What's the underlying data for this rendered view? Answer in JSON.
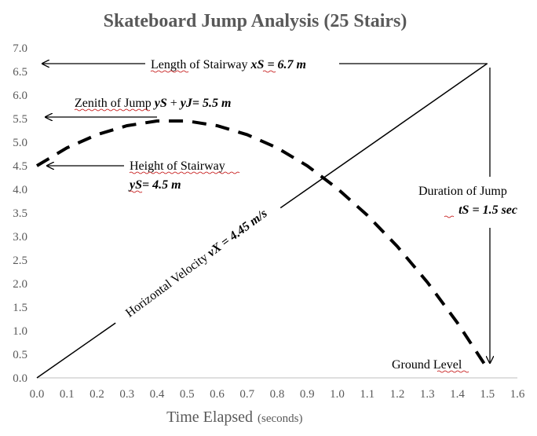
{
  "chart_data": {
    "type": "line",
    "title": "Skateboard Jump Analysis (25 Stairs)",
    "xlabel": "Time Elapsed",
    "xlabel_unit": "(seconds)",
    "ylabel": "",
    "xlim": [
      0,
      1.6
    ],
    "ylim": [
      0,
      7.0
    ],
    "x_ticks": [
      "0.0",
      "0.1",
      "0.2",
      "0.3",
      "0.4",
      "0.5",
      "0.6",
      "0.7",
      "0.8",
      "0.9",
      "1.0",
      "1.1",
      "1.2",
      "1.3",
      "1.4",
      "1.5",
      "1.6"
    ],
    "y_ticks": [
      "0.0",
      "0.5",
      "1.0",
      "1.5",
      "2.0",
      "2.5",
      "3.0",
      "3.5",
      "4.0",
      "4.5",
      "5.0",
      "5.5",
      "6.0",
      "6.5",
      "7.0"
    ],
    "grid": false,
    "series": [
      {
        "style": "solid",
        "color": "#000000",
        "x": [
          0,
          1.5
        ],
        "y": [
          0,
          6.67
        ]
      },
      {
        "style": "dashed",
        "color": "#000000",
        "x": [
          0.0,
          0.1,
          0.2,
          0.3,
          0.4,
          0.5,
          0.6,
          0.7,
          0.8,
          0.9,
          1.0,
          1.1,
          1.2,
          1.3,
          1.4,
          1.5
        ],
        "y": [
          4.5,
          4.88,
          5.16,
          5.35,
          5.45,
          5.45,
          5.35,
          5.16,
          4.88,
          4.5,
          4.02,
          3.45,
          2.79,
          2.03,
          1.17,
          0.2
        ]
      }
    ],
    "annotations": {
      "length": {
        "text": "Length of Stairway ",
        "var": "xS",
        "value": " = 6.7 m"
      },
      "zenith": {
        "text": "Zenith of Jump ",
        "var1": "yS",
        "plus": " + ",
        "var2": "yJ",
        "value": "= 5.5 m"
      },
      "height": {
        "line1": "Height of Stairway",
        "var": "yS",
        "value": "= 4.5 m"
      },
      "velocity": {
        "text": "Horizontal Velocity ",
        "var": "vX",
        "value": " = 4.45 m/s"
      },
      "duration": {
        "line1": "Duration of Jump",
        "var": "tS",
        "value": " = 1.5 sec"
      },
      "ground": {
        "text": "Ground Level"
      }
    }
  }
}
